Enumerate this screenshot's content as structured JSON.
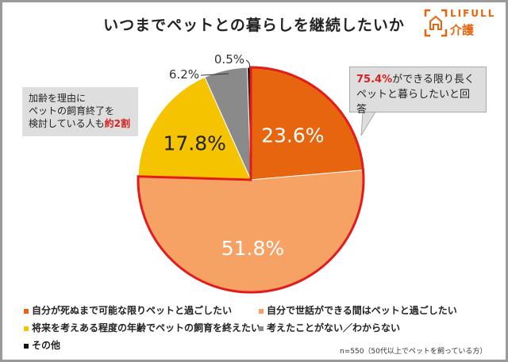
{
  "title": "いつまでペットとの暮らしを継続したいか",
  "logo": {
    "top": "LIFULL",
    "bottom": "介護"
  },
  "callout_left": {
    "line1": "加齢を理由に",
    "line2": "ペットの飼育終了を",
    "line3_pre": "検討している人も",
    "line3_em": "約2割"
  },
  "callout_right": {
    "em": "75.4%",
    "line1_rest": "ができる限り長く",
    "line2": "ペットと暮らしたいと回答"
  },
  "note": "n=550（50代以上でペットを飼っている方）",
  "chart_data": {
    "type": "pie",
    "title": "いつまでペットとの暮らしを継続したいか",
    "start": "top",
    "direction": "clockwise",
    "slices": [
      {
        "label": "自分が死ぬまで可能な限りペットと過ごしたい",
        "value": 23.6,
        "display": "23.6%",
        "color": "#e8650f"
      },
      {
        "label": "自分で世話ができる間はペットと過ごしたい",
        "value": 51.8,
        "display": "51.8%",
        "color": "#f7a265"
      },
      {
        "label": "将来を考えある程度の年齢でペットの飼育を終えたい",
        "value": 17.8,
        "display": "17.8%",
        "color": "#f5c300"
      },
      {
        "label": "考えたことがない／わからない",
        "value": 6.2,
        "display": "6.2%",
        "color": "#8a8a8a"
      },
      {
        "label": "その他",
        "value": 0.5,
        "display": "0.5%",
        "color": "#111111"
      }
    ],
    "highlight_color": "#e21b1b",
    "legend_position": "bottom"
  }
}
